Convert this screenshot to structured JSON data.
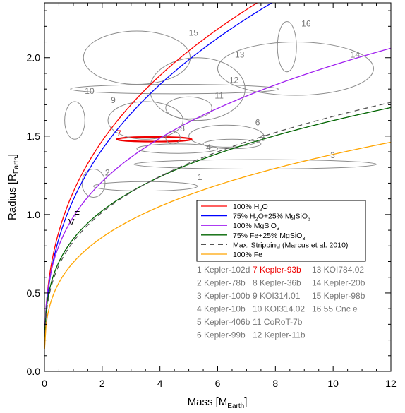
{
  "chart_data": {
    "type": "line",
    "xlabel": "Mass [M",
    "xlabel_sub": "Earth",
    "xlabel_close": "]",
    "ylabel": "Radius [R",
    "ylabel_sub": "Earth",
    "ylabel_close": "]",
    "xlim": [
      0,
      12
    ],
    "ylim": [
      0,
      2.35
    ],
    "x_ticks": [
      0,
      2,
      4,
      6,
      8,
      10,
      12
    ],
    "y_ticks": [
      0.0,
      0.5,
      1.0,
      1.5,
      2.0
    ],
    "x_tick_labels": [
      "0",
      "2",
      "4",
      "6",
      "8",
      "10",
      "12"
    ],
    "y_tick_labels": [
      "0.0",
      "0.5",
      "1.0",
      "1.5",
      "2.0"
    ],
    "grid": false,
    "legend_position": "center-right",
    "series": [
      {
        "name": "100% H",
        "name_sub": "2",
        "name_tail": "O",
        "color": "#ff0000",
        "dash": "solid",
        "const": 1.145,
        "exp": 0.36
      },
      {
        "name": "75% H",
        "name_sub": "2",
        "name_tail": "O+25% MgSiO",
        "name_sub2": "3",
        "color": "#0000ff",
        "dash": "solid",
        "const": 1.095,
        "exp": 0.37
      },
      {
        "name": "100% MgSiO",
        "name_sub": "3",
        "name_tail": "",
        "color": "#a020f0",
        "dash": "solid",
        "const": 0.985,
        "exp": 0.297
      },
      {
        "name": "75% Fe+25% MgSiO",
        "name_sub": "3",
        "name_tail": "",
        "color": "#006400",
        "dash": "solid",
        "const": 0.845,
        "exp": 0.277
      },
      {
        "name": "Max. Stripping (Marcus et al. 2010)",
        "name_sub": "",
        "name_tail": "",
        "color": "#555555",
        "dash": "dashed",
        "const": 0.828,
        "exp": 0.293
      },
      {
        "name": "100% Fe",
        "name_sub": "",
        "name_tail": "",
        "color": "#ffa500",
        "dash": "solid",
        "const": 0.695,
        "exp": 0.299
      }
    ],
    "planets": [
      {
        "id": "1",
        "name": "Kepler-102d",
        "highlight": false,
        "x": 3.5,
        "y": 1.18,
        "rx": 1.8,
        "ry": 0.03,
        "label_x": 5.3,
        "label_y": 1.22
      },
      {
        "id": "2",
        "name": "Kepler-78b",
        "highlight": false,
        "x": 1.7,
        "y": 1.2,
        "rx": 0.4,
        "ry": 0.09,
        "label_x": 2.1,
        "label_y": 1.25
      },
      {
        "id": "3",
        "name": "Kepler-100b",
        "highlight": false,
        "x": 7.3,
        "y": 1.32,
        "rx": 4.2,
        "ry": 0.03,
        "label_x": 9.9,
        "label_y": 1.36
      },
      {
        "id": "4",
        "name": "Kepler-10b",
        "highlight": false,
        "x": 4.6,
        "y": 1.42,
        "rx": 1.4,
        "ry": 0.03,
        "label_x": 5.6,
        "label_y": 1.41
      },
      {
        "id": "5",
        "name": "Kepler-406b",
        "highlight": false,
        "x": 6.5,
        "y": 1.45,
        "rx": 1.0,
        "ry": 0.03,
        "label_x": 7.5,
        "label_y": 1.47
      },
      {
        "id": "6",
        "name": "Kepler-99b",
        "highlight": false,
        "x": 6.3,
        "y": 1.5,
        "rx": 1.3,
        "ry": 0.07,
        "label_x": 7.3,
        "label_y": 1.57
      },
      {
        "id": "7",
        "name": "Kepler-93b",
        "highlight": true,
        "x": 3.8,
        "y": 1.48,
        "rx": 1.3,
        "ry": 0.015,
        "label_x": 2.5,
        "label_y": 1.5
      },
      {
        "id": "8",
        "name": "Kepler-36b",
        "highlight": false,
        "x": 4.45,
        "y": 1.49,
        "rx": 0.25,
        "ry": 0.04,
        "label_x": 4.7,
        "label_y": 1.53
      },
      {
        "id": "9",
        "name": "KOI314.01",
        "highlight": false,
        "x": 3.5,
        "y": 1.6,
        "rx": 1.3,
        "ry": 0.12,
        "label_x": 2.3,
        "label_y": 1.71
      },
      {
        "id": "10",
        "name": "KOI314.02",
        "highlight": false,
        "x": 1.05,
        "y": 1.6,
        "rx": 0.35,
        "ry": 0.12,
        "label_x": 1.4,
        "label_y": 1.77
      },
      {
        "id": "11",
        "name": "CoRoT-7b",
        "highlight": false,
        "x": 5.0,
        "y": 1.68,
        "rx": 0.8,
        "ry": 0.07,
        "label_x": 5.9,
        "label_y": 1.74
      },
      {
        "id": "12",
        "name": "Kepler-11b",
        "highlight": false,
        "x": 5.3,
        "y": 1.8,
        "rx": 1.65,
        "ry": 0.2,
        "label_x": 6.4,
        "label_y": 1.84
      },
      {
        "id": "13",
        "name": "KOI784.02",
        "highlight": false,
        "x": 4.5,
        "y": 1.8,
        "rx": 3.6,
        "ry": 0.03,
        "label_x": 6.6,
        "label_y": 2.0
      },
      {
        "id": "14",
        "name": "Kepler-20b",
        "highlight": false,
        "x": 8.7,
        "y": 1.93,
        "rx": 2.7,
        "ry": 0.17,
        "label_x": 10.6,
        "label_y": 2.0
      },
      {
        "id": "15",
        "name": "Kepler-98b",
        "highlight": false,
        "x": 3.2,
        "y": 2.0,
        "rx": 1.85,
        "ry": 0.17,
        "label_x": 5.0,
        "label_y": 2.14
      },
      {
        "id": "16",
        "name": "55 Cnc e",
        "highlight": false,
        "x": 8.4,
        "y": 2.07,
        "rx": 0.33,
        "ry": 0.16,
        "label_x": 8.9,
        "label_y": 2.2
      }
    ],
    "earth_marker": {
      "label": "E",
      "symbol": "V",
      "x": 1.0,
      "y": 1.0
    },
    "highlight_color": "#ee0000"
  }
}
